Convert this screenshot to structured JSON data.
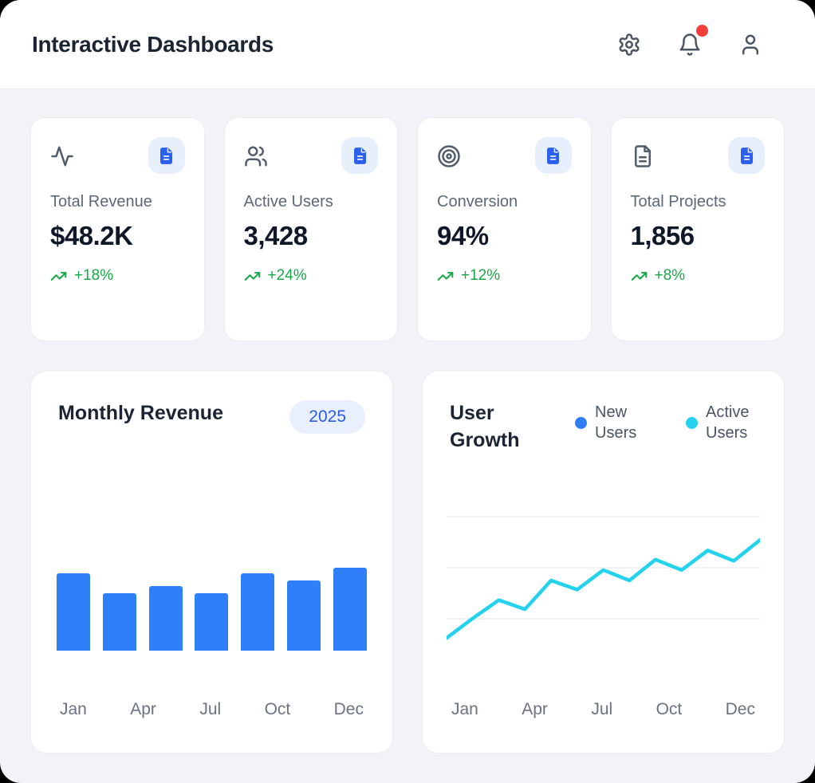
{
  "header": {
    "title": "Interactive Dashboards",
    "actions": [
      {
        "icon": "gear-icon",
        "label": "Settings"
      },
      {
        "icon": "bell-icon",
        "label": "Notifications",
        "unread_badge": true
      },
      {
        "icon": "user-icon",
        "label": "Profile"
      }
    ]
  },
  "stats": [
    {
      "icon": "activity-icon",
      "label": "Total Revenue",
      "value": "$48.2K",
      "trend": "+18%"
    },
    {
      "icon": "users-icon",
      "label": "Active Users",
      "value": "3,428",
      "trend": "+24%"
    },
    {
      "icon": "target-icon",
      "label": "Conversion",
      "value": "94%",
      "trend": "+12%"
    },
    {
      "icon": "file-text-icon",
      "label": "Total Projects",
      "value": "1,856",
      "trend": "+8%"
    }
  ],
  "revenue_chart": {
    "title": "Monthly Revenue",
    "badge": "2025",
    "x_labels": [
      "Jan",
      "Apr",
      "Jul",
      "Oct",
      "Dec"
    ]
  },
  "growth_chart": {
    "title": "User Growth",
    "legend": [
      {
        "label": "New Users",
        "color": "#2e7cf6"
      },
      {
        "label": "Active Users",
        "color": "#25d2ee"
      }
    ],
    "x_labels": [
      "Jan",
      "Apr",
      "Jul",
      "Oct",
      "Dec"
    ]
  },
  "colors": {
    "accent_blue": "#2b5ff0",
    "bar_blue": "#2f80f8",
    "cyan": "#25d2ee",
    "green": "#18a848",
    "notification_red": "#f23d3d",
    "badge_bg": "#e8effc",
    "card_border": "#ecedf2",
    "page_bg": "#f2f3f6",
    "heading": "#1a2433",
    "muted_text": "#5c6878"
  },
  "chart_data": [
    {
      "type": "bar",
      "title": "Monthly Revenue",
      "x_tick_labels": [
        "Jan",
        "Apr",
        "Jul",
        "Oct",
        "Dec"
      ],
      "values": [
        93,
        69,
        78,
        69,
        93,
        85,
        100
      ],
      "ylim": [
        0,
        100
      ],
      "bar_color": "#2f80f8",
      "grid": false,
      "note": "7 bars, no y-axis shown; values are relative heights (max bar = 100)"
    },
    {
      "type": "line",
      "title": "User Growth",
      "x_tick_labels": [
        "Jan",
        "Apr",
        "Jul",
        "Oct",
        "Dec"
      ],
      "legend_position": "top-right",
      "grid": true,
      "ylim": [
        0,
        100
      ],
      "series": [
        {
          "name": "New Users",
          "color": "#2e7cf6",
          "visible": false
        },
        {
          "name": "Active Users",
          "color": "#25d2ee",
          "visible": true,
          "values": [
            6,
            21,
            35,
            28,
            50,
            43,
            58,
            50,
            66,
            58,
            73,
            65,
            81
          ]
        }
      ],
      "note": "13 evenly spaced points Jan-Dec; only the cyan Active Users line is visible; values are relative (no y-axis labels shown)"
    }
  ]
}
